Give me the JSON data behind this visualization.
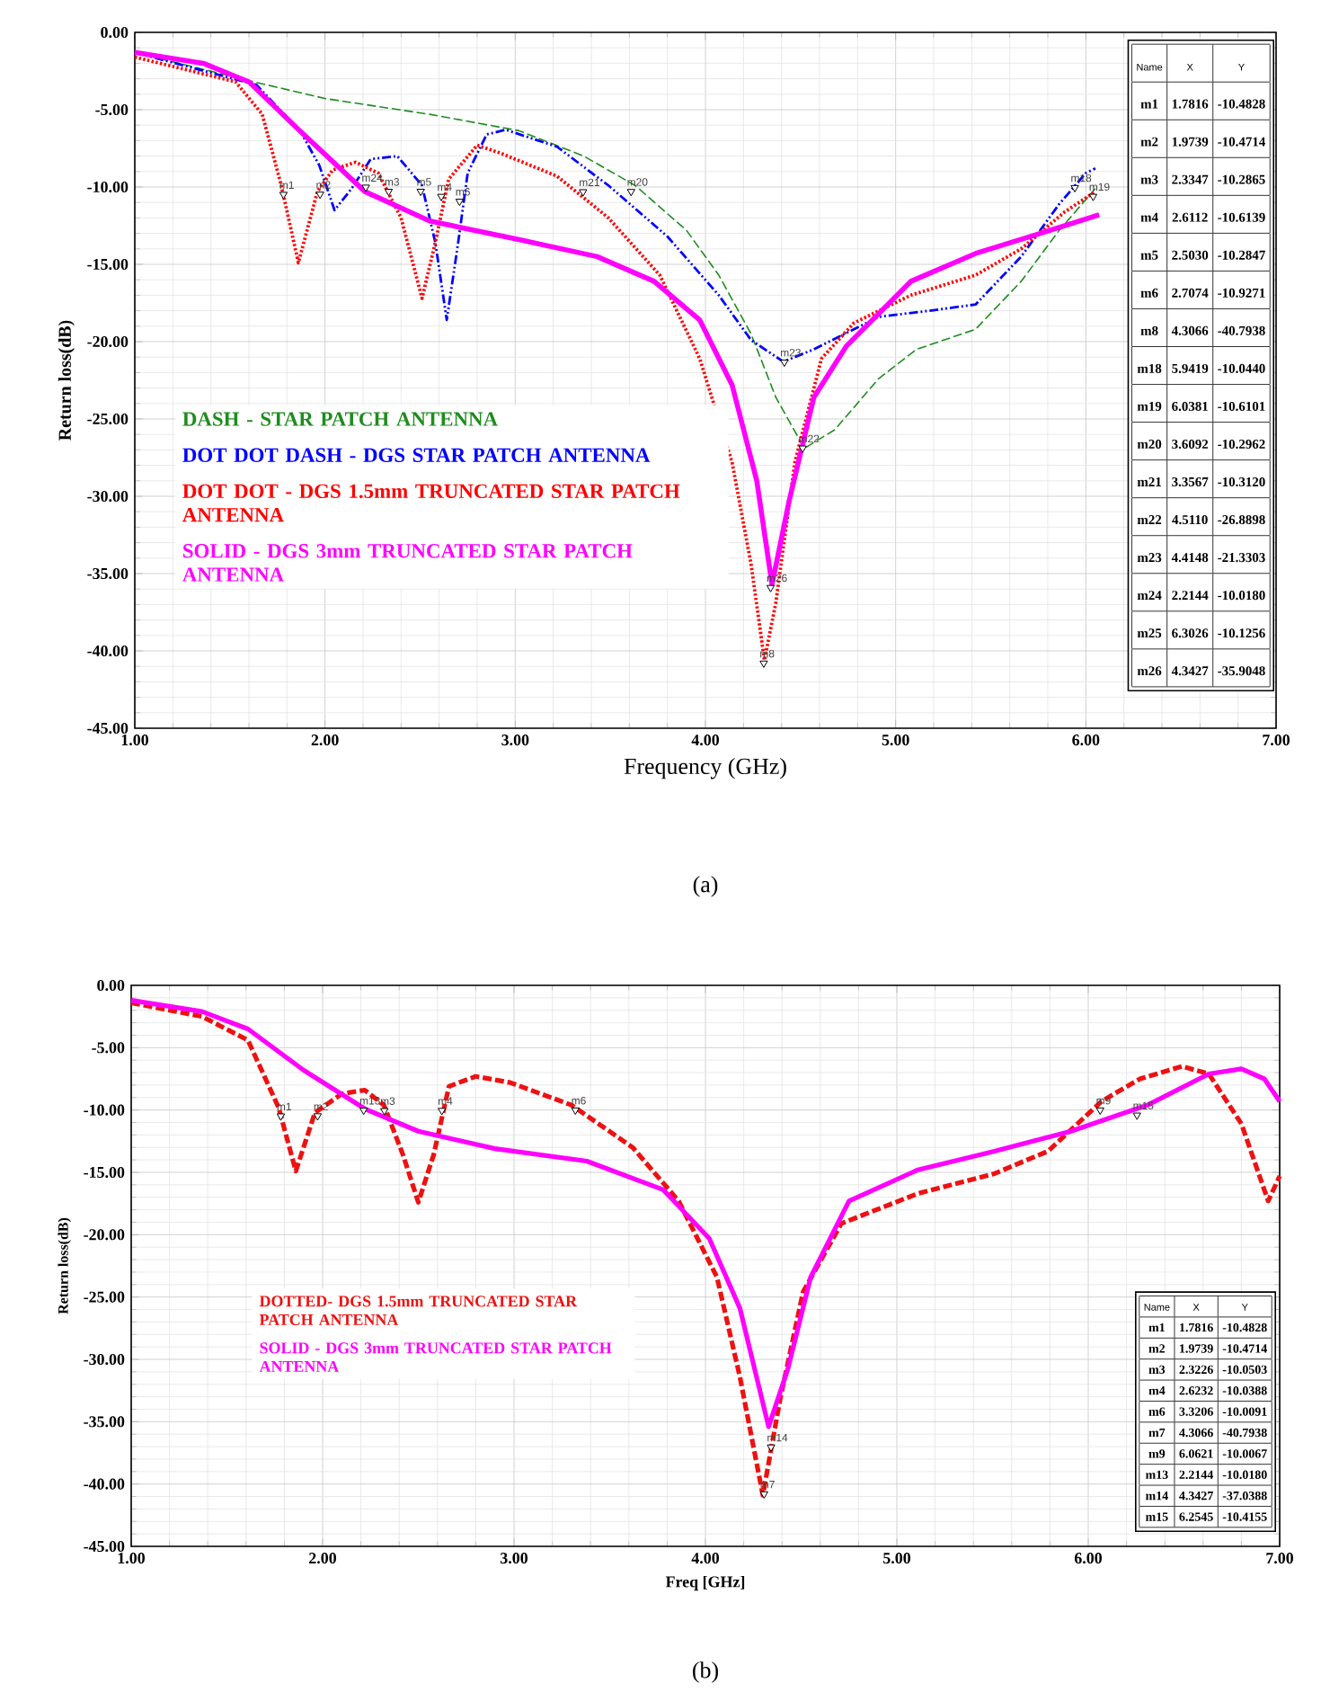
{
  "chart_data": [
    {
      "type": "line",
      "title": "(a)",
      "xlabel": "Frequency (GHz)",
      "ylabel": "Return loss(dB)",
      "xlim": [
        1,
        7
      ],
      "ylim": [
        -45,
        0
      ],
      "xticks": [
        {
          "value": 1,
          "label": "1.00"
        },
        {
          "value": 2,
          "label": "2.00"
        },
        {
          "value": 3,
          "label": "3.00"
        },
        {
          "value": 4,
          "label": "4.00"
        },
        {
          "value": 5,
          "label": "5.00"
        },
        {
          "value": 6,
          "label": "6.00"
        },
        {
          "value": 7,
          "label": "7.00"
        }
      ],
      "yticks": [
        {
          "value": 0,
          "label": "0.00"
        },
        {
          "value": -5,
          "label": "-5.00"
        },
        {
          "value": -10,
          "label": "-10.00"
        },
        {
          "value": -15,
          "label": "-15.00"
        },
        {
          "value": -20,
          "label": "-20.00"
        },
        {
          "value": -25,
          "label": "-25.00"
        },
        {
          "value": -30,
          "label": "-30.00"
        },
        {
          "value": -35,
          "label": "-35.00"
        },
        {
          "value": -40,
          "label": "-40.00"
        },
        {
          "value": -45,
          "label": "-45.00"
        }
      ],
      "grid": true,
      "legend": "bottom left",
      "series": [
        {
          "name": "DASH - STAR PATCH ANTENNA",
          "color": "#1e8c1e",
          "line_style": "dashed",
          "x": [
            1.0,
            1.64,
            2.0,
            2.55,
            3.02,
            3.36,
            3.63,
            3.9,
            4.07,
            4.24,
            4.37,
            4.52,
            4.68,
            4.91,
            5.11,
            5.42,
            5.66,
            5.86,
            6.05
          ],
          "values": [
            -1.3,
            -3.24,
            -4.28,
            -5.3,
            -6.36,
            -8.0,
            -9.9,
            -12.8,
            -15.7,
            -19.5,
            -23.6,
            -26.9,
            -25.7,
            -22.4,
            -20.5,
            -19.2,
            -16.1,
            -12.8,
            -10.1
          ]
        },
        {
          "name": "DOT DOT DASH - DGS STAR PATCH ANTENNA",
          "color": "#0000ff",
          "line_style": "dashdotdotted",
          "x": [
            1.0,
            1.64,
            1.87,
            1.97,
            2.05,
            2.14,
            2.24,
            2.38,
            2.51,
            2.58,
            2.64,
            2.7,
            2.75,
            2.85,
            2.95,
            3.22,
            3.49,
            3.8,
            4.07,
            4.24,
            4.41,
            4.57,
            4.91,
            5.18,
            5.42,
            5.66,
            5.86,
            6.0,
            6.05
          ],
          "values": [
            -1.3,
            -3.4,
            -6.4,
            -8.6,
            -11.5,
            -10.1,
            -8.2,
            -8.0,
            -9.9,
            -13.6,
            -18.6,
            -13.6,
            -9.1,
            -6.6,
            -6.3,
            -7.4,
            -9.9,
            -13.2,
            -17.0,
            -19.9,
            -21.3,
            -20.5,
            -18.4,
            -18.0,
            -17.6,
            -14.5,
            -11.1,
            -9.1,
            -8.8
          ]
        },
        {
          "name": "DOT DOT - DGS 1.5mm TRUNCATED STAR PATCH ANTENNA",
          "color": "#ff0000",
          "line_style": "dotted",
          "x": [
            1.0,
            1.53,
            1.67,
            1.77,
            1.86,
            1.96,
            2.04,
            2.16,
            2.28,
            2.4,
            2.51,
            2.58,
            2.65,
            2.8,
            2.92,
            3.22,
            3.49,
            3.76,
            3.97,
            4.14,
            4.24,
            4.31,
            4.37,
            4.47,
            4.61,
            4.78,
            5.08,
            5.42,
            5.66,
            5.89,
            6.05
          ],
          "values": [
            -1.6,
            -3.2,
            -5.3,
            -9.9,
            -14.9,
            -10.3,
            -8.9,
            -8.4,
            -9.1,
            -12.0,
            -17.2,
            -13.6,
            -9.5,
            -7.3,
            -7.8,
            -9.3,
            -12.0,
            -15.7,
            -21.1,
            -27.8,
            -34.4,
            -40.6,
            -36.9,
            -27.8,
            -21.1,
            -18.8,
            -17.0,
            -15.7,
            -14.0,
            -11.6,
            -10.3
          ]
        },
        {
          "name": "SOLID - DGS 3mm TRUNCATED STAR PATCH ANTENNA",
          "color": "#ff00ff",
          "line_style": "solid",
          "x": [
            1.0,
            1.36,
            1.6,
            1.87,
            2.21,
            2.55,
            3.02,
            3.43,
            3.73,
            3.97,
            4.14,
            4.27,
            4.35,
            4.44,
            4.57,
            4.74,
            5.08,
            5.42,
            5.76,
            6.07
          ],
          "values": [
            -1.3,
            -2.0,
            -3.2,
            -6.4,
            -10.3,
            -12.2,
            -13.4,
            -14.5,
            -16.1,
            -18.6,
            -22.8,
            -29.0,
            -35.7,
            -30.3,
            -23.6,
            -20.3,
            -16.1,
            -14.3,
            -13.0,
            -11.8
          ]
        }
      ],
      "annotations": [
        "Name",
        "X",
        "Y",
        "m1",
        "1.7816",
        "-10.4828",
        "m2",
        "1.9739",
        "-10.4714",
        "m3",
        "2.3347",
        "-10.2865",
        "m4",
        "2.6112",
        "-10.6139",
        "m5",
        "2.5030",
        "-10.2847",
        "m6",
        "2.7074",
        "-10.9271",
        "m8",
        "4.3066",
        "-40.7938",
        "m18",
        "5.9419",
        "-10.0440",
        "m19",
        "6.0381",
        "-10.6101",
        "m20",
        "3.6092",
        "-10.2962",
        "m21",
        "3.3567",
        "-10.3120",
        "m22",
        "4.5110",
        "-26.8898",
        "m23",
        "4.4148",
        "-21.3303",
        "m24",
        "2.2144",
        "-10.0180",
        "m25",
        "6.3026",
        "-10.1256",
        "m26",
        "4.3427",
        "-35.9048",
        {
          "text": "m1",
          "x": 1.7816,
          "y": -10.4828
        },
        {
          "text": "m2",
          "x": 1.9739,
          "y": -10.4714
        },
        {
          "text": "m3",
          "x": 2.3347,
          "y": -10.2865
        },
        {
          "text": "m4",
          "x": 2.6112,
          "y": -10.6139
        },
        {
          "text": "m5",
          "x": 2.503,
          "y": -10.2847
        },
        {
          "text": "m6",
          "x": 2.7074,
          "y": -10.9271
        },
        {
          "text": "m8",
          "x": 4.3066,
          "y": -40.7938
        },
        {
          "text": "m18",
          "x": 5.9419,
          "y": -10.044
        },
        {
          "text": "m19",
          "x": 6.0381,
          "y": -10.6101
        },
        {
          "text": "m20",
          "x": 3.6092,
          "y": -10.2962
        },
        {
          "text": "m21",
          "x": 3.3567,
          "y": -10.312
        },
        {
          "text": "m22",
          "x": 4.511,
          "y": -26.8898
        },
        {
          "text": "m23",
          "x": 4.4148,
          "y": -21.3303
        },
        {
          "text": "m24",
          "x": 2.2144,
          "y": -10.018
        },
        {
          "text": "m26",
          "x": 4.3427,
          "y": -35.9048
        }
      ]
    },
    {
      "type": "line",
      "title": "(b)",
      "xlabel": "Freq [GHz]",
      "ylabel": "Return loss(dB)",
      "xlim": [
        1,
        7
      ],
      "ylim": [
        -45,
        0
      ],
      "xticks": [
        {
          "value": 1,
          "label": "1.00"
        },
        {
          "value": 2,
          "label": "2.00"
        },
        {
          "value": 3,
          "label": "3.00"
        },
        {
          "value": 4,
          "label": "4.00"
        },
        {
          "value": 5,
          "label": "5.00"
        },
        {
          "value": 6,
          "label": "6.00"
        },
        {
          "value": 7,
          "label": "7.00"
        }
      ],
      "yticks": [
        {
          "value": 0,
          "label": "0.00"
        },
        {
          "value": -5,
          "label": "-5.00"
        },
        {
          "value": -10,
          "label": "-10.00"
        },
        {
          "value": -15,
          "label": "-15.00"
        },
        {
          "value": -20,
          "label": "-20.00"
        },
        {
          "value": -25,
          "label": "-25.00"
        },
        {
          "value": -30,
          "label": "-30.00"
        },
        {
          "value": -35,
          "label": "-35.00"
        },
        {
          "value": -40,
          "label": "-40.00"
        },
        {
          "value": -45,
          "label": "-45.00"
        }
      ],
      "grid": true,
      "legend": "left",
      "series": [
        {
          "name": "DOTTED- DGS 1.5mm TRUNCATED STAR PATCH ANTENNA",
          "color": "#ee1111",
          "line_style": "dashed",
          "x": [
            1.0,
            1.37,
            1.61,
            1.77,
            1.86,
            1.96,
            2.1,
            2.22,
            2.32,
            2.42,
            2.5,
            2.58,
            2.66,
            2.8,
            2.98,
            3.3,
            3.62,
            3.86,
            4.06,
            4.18,
            4.3,
            4.39,
            4.51,
            4.71,
            5.11,
            5.51,
            5.79,
            6.07,
            6.27,
            6.49,
            6.63,
            6.8,
            6.94,
            7.0
          ],
          "values": [
            -1.4,
            -2.5,
            -4.4,
            -9.8,
            -14.9,
            -10.2,
            -8.7,
            -8.4,
            -9.6,
            -13.6,
            -17.4,
            -13.6,
            -8.1,
            -7.3,
            -7.8,
            -9.6,
            -13.0,
            -17.3,
            -23.4,
            -31.4,
            -40.9,
            -33.2,
            -24.6,
            -19.1,
            -16.7,
            -15.1,
            -13.3,
            -9.3,
            -7.5,
            -6.5,
            -7.1,
            -11.1,
            -17.3,
            -15.3
          ]
        },
        {
          "name": "SOLID - DGS 3mm TRUNCATED STAR PATCH ANTENNA",
          "color": "#ff00ff",
          "line_style": "solid",
          "x": [
            1.0,
            1.37,
            1.61,
            1.9,
            2.22,
            2.5,
            2.9,
            3.38,
            3.78,
            4.02,
            4.18,
            4.33,
            4.43,
            4.55,
            4.75,
            5.11,
            5.51,
            5.91,
            6.31,
            6.63,
            6.8,
            6.92,
            7.0
          ],
          "values": [
            -1.2,
            -2.1,
            -3.5,
            -6.8,
            -9.9,
            -11.7,
            -13.1,
            -14.1,
            -16.4,
            -20.3,
            -25.9,
            -35.4,
            -30.8,
            -23.4,
            -17.3,
            -14.8,
            -13.3,
            -11.7,
            -9.6,
            -7.1,
            -6.7,
            -7.5,
            -9.3
          ]
        }
      ],
      "annotations": [
        "Name",
        "X",
        "Y",
        "m1",
        "1.7816",
        "-10.4828",
        "m2",
        "1.9739",
        "-10.4714",
        "m3",
        "2.3226",
        "-10.0503",
        "m4",
        "2.6232",
        "-10.0388",
        "m6",
        "3.3206",
        "-10.0091",
        "m7",
        "4.3066",
        "-40.7938",
        "m9",
        "6.0621",
        "-10.0067",
        "m13",
        "2.2144",
        "-10.0180",
        "m14",
        "4.3427",
        "-37.0388",
        "m15",
        "6.2545",
        "-10.4155",
        {
          "text": "m1",
          "x": 1.7816,
          "y": -10.4828
        },
        {
          "text": "m2",
          "x": 1.9739,
          "y": -10.4714
        },
        {
          "text": "m3",
          "x": 2.3226,
          "y": -10.0503
        },
        {
          "text": "m4",
          "x": 2.6232,
          "y": -10.0388
        },
        {
          "text": "m6",
          "x": 3.3206,
          "y": -10.0091
        },
        {
          "text": "m7",
          "x": 4.3066,
          "y": -40.7938
        },
        {
          "text": "m9",
          "x": 6.0621,
          "y": -10.0067
        },
        {
          "text": "m13",
          "x": 2.2144,
          "y": -10.018
        },
        {
          "text": "m14",
          "x": 4.3427,
          "y": -37.0388
        },
        {
          "text": "m15",
          "x": 6.2545,
          "y": -10.4155
        }
      ]
    }
  ]
}
